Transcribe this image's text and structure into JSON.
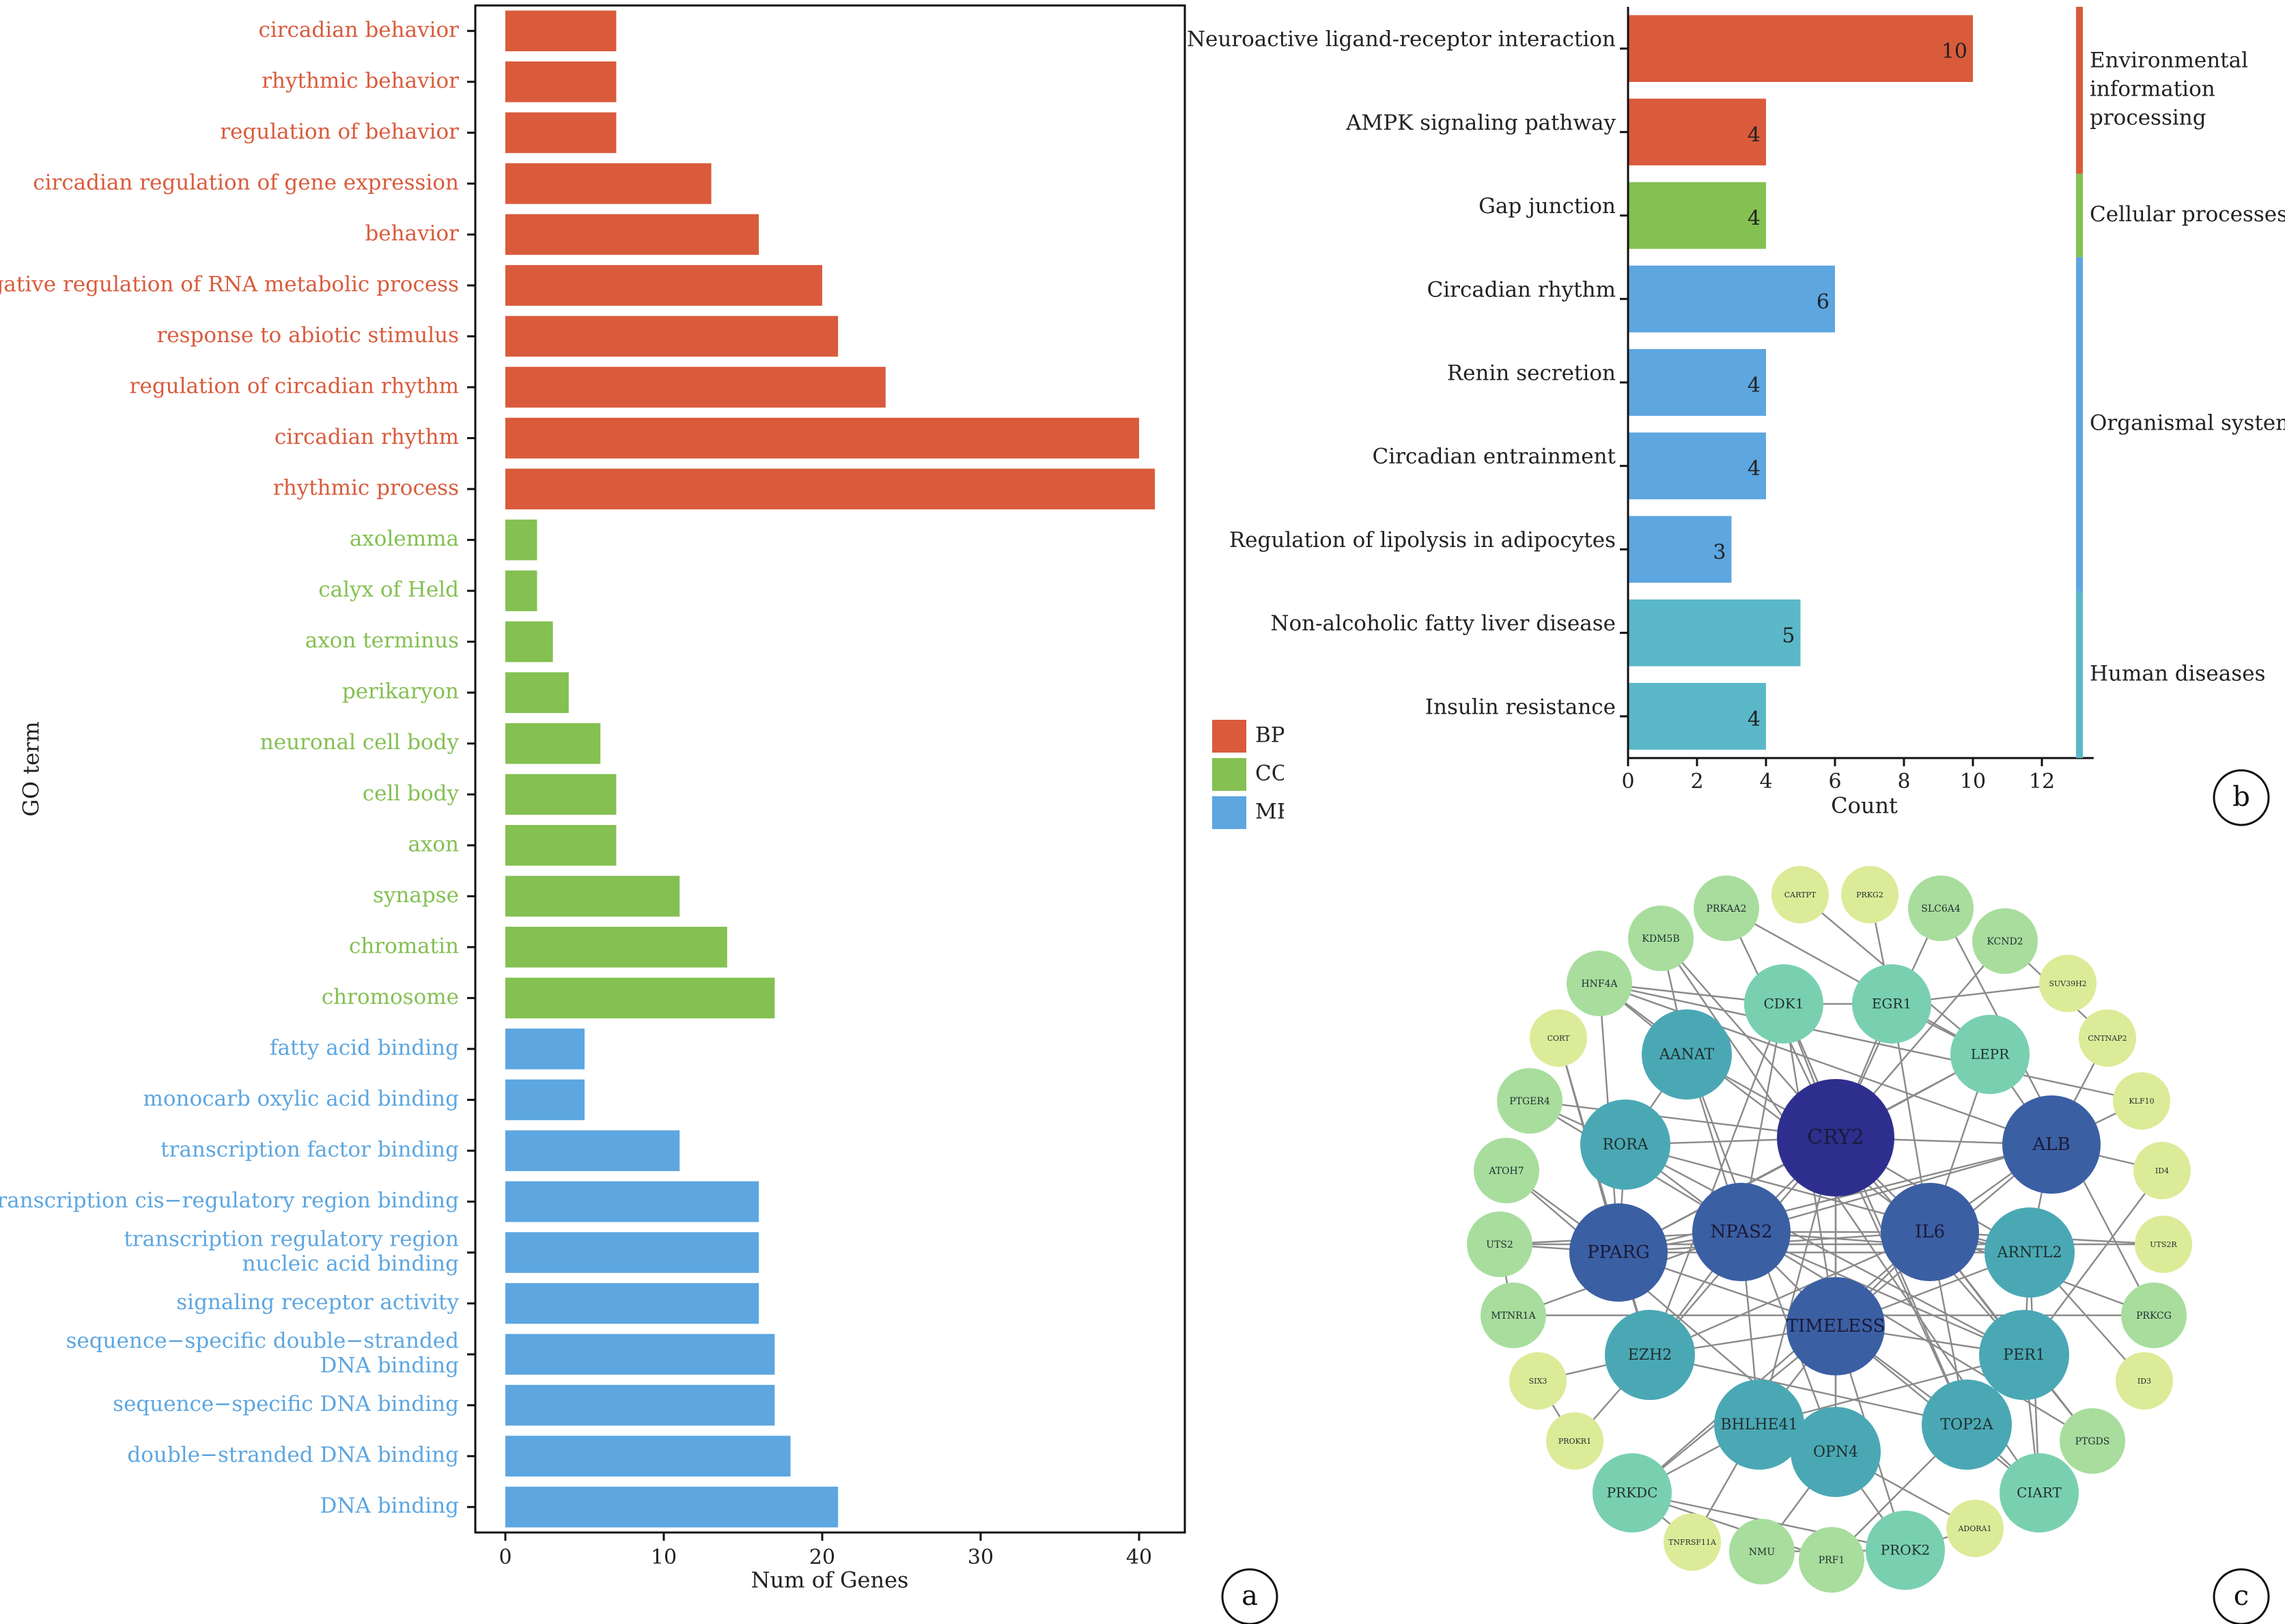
{
  "panels": {
    "a": {
      "label": "a",
      "chart_data": {
        "type": "bar",
        "orientation": "horizontal",
        "xlabel": "Num of Genes",
        "ylabel": "GO term",
        "xlim": [
          0,
          43
        ],
        "xticks": [
          0,
          10,
          20,
          30,
          40
        ],
        "grid": false,
        "legend_placement": "right",
        "legend": [
          {
            "name": "BP",
            "color": "#D95B3C"
          },
          {
            "name": "CC",
            "color": "#84C052"
          },
          {
            "name": "MF",
            "color": "#5DA6E0"
          }
        ],
        "categories": [
          {
            "label": "circadian behavior",
            "value": 7,
            "group": "BP"
          },
          {
            "label": "rhythmic behavior",
            "value": 7,
            "group": "BP"
          },
          {
            "label": "regulation of behavior",
            "value": 7,
            "group": "BP"
          },
          {
            "label": "circadian regulation of gene expression",
            "value": 13,
            "group": "BP"
          },
          {
            "label": "behavior",
            "value": 16,
            "group": "BP"
          },
          {
            "label": "negative regulation of RNA metabolic process",
            "value": 20,
            "group": "BP"
          },
          {
            "label": "response to abiotic stimulus",
            "value": 21,
            "group": "BP"
          },
          {
            "label": "regulation of circadian rhythm",
            "value": 24,
            "group": "BP"
          },
          {
            "label": "circadian rhythm",
            "value": 40,
            "group": "BP"
          },
          {
            "label": "rhythmic process",
            "value": 41,
            "group": "BP"
          },
          {
            "label": "axolemma",
            "value": 2,
            "group": "CC"
          },
          {
            "label": "calyx of Held",
            "value": 2,
            "group": "CC"
          },
          {
            "label": "axon terminus",
            "value": 3,
            "group": "CC"
          },
          {
            "label": "perikaryon",
            "value": 4,
            "group": "CC"
          },
          {
            "label": "neuronal cell body",
            "value": 6,
            "group": "CC"
          },
          {
            "label": "cell body",
            "value": 7,
            "group": "CC"
          },
          {
            "label": "axon",
            "value": 7,
            "group": "CC"
          },
          {
            "label": "synapse",
            "value": 11,
            "group": "CC"
          },
          {
            "label": "chromatin",
            "value": 14,
            "group": "CC"
          },
          {
            "label": "chromosome",
            "value": 17,
            "group": "CC"
          },
          {
            "label": "fatty acid binding",
            "value": 5,
            "group": "MF"
          },
          {
            "label": "monocarb oxylic acid binding",
            "value": 5,
            "group": "MF"
          },
          {
            "label": "transcription factor binding",
            "value": 11,
            "group": "MF"
          },
          {
            "label": "transcription cis−regulatory region binding",
            "value": 16,
            "group": "MF"
          },
          {
            "label": "transcription regulatory region\nnucleic acid binding",
            "value": 16,
            "group": "MF"
          },
          {
            "label": "signaling receptor activity",
            "value": 16,
            "group": "MF"
          },
          {
            "label": "sequence−specific double−stranded\nDNA binding",
            "value": 17,
            "group": "MF"
          },
          {
            "label": "sequence−specific DNA binding",
            "value": 17,
            "group": "MF"
          },
          {
            "label": "double−stranded DNA binding",
            "value": 18,
            "group": "MF"
          },
          {
            "label": "DNA binding",
            "value": 21,
            "group": "MF"
          }
        ]
      }
    },
    "b": {
      "label": "b",
      "chart_data": {
        "type": "bar",
        "orientation": "horizontal",
        "xlabel": "Count",
        "xlim": [
          0,
          13.5
        ],
        "xticks": [
          0,
          2,
          4,
          6,
          8,
          10,
          12
        ],
        "grid": false,
        "categories": [
          {
            "label": "Neuroactive ligand-receptor interaction",
            "value": 10,
            "group": "Environmental information processing"
          },
          {
            "label": "AMPK signaling pathway",
            "value": 4,
            "group": "Environmental information processing"
          },
          {
            "label": "Gap junction",
            "value": 4,
            "group": "Cellular processes"
          },
          {
            "label": "Circadian rhythm",
            "value": 6,
            "group": "Organismal systems"
          },
          {
            "label": "Renin secretion",
            "value": 4,
            "group": "Organismal systems"
          },
          {
            "label": "Circadian entrainment",
            "value": 4,
            "group": "Organismal systems"
          },
          {
            "label": "Regulation of lipolysis in adipocytes",
            "value": 3,
            "group": "Organismal systems"
          },
          {
            "label": "Non-alcoholic fatty liver disease",
            "value": 5,
            "group": "Human diseases"
          },
          {
            "label": "Insulin resistance",
            "value": 4,
            "group": "Human diseases"
          }
        ],
        "groups": [
          {
            "name": "Environmental\ninformation\nprocessing",
            "key": "Environmental information processing",
            "color": "#D95B3C"
          },
          {
            "name": "Cellular processes",
            "key": "Cellular processes",
            "color": "#84C052"
          },
          {
            "name": "Organismal systems",
            "key": "Organismal systems",
            "color": "#5DA6E0"
          },
          {
            "name": "Human diseases",
            "key": "Human diseases",
            "color": "#5AB8C8"
          }
        ]
      }
    },
    "c": {
      "label": "c",
      "network": {
        "type": "network",
        "nodes": [
          {
            "id": "CRY2",
            "tier": 1
          },
          {
            "id": "IL6",
            "tier": 2
          },
          {
            "id": "NPAS2",
            "tier": 2
          },
          {
            "id": "TIMELESS",
            "tier": 2
          },
          {
            "id": "ALB",
            "tier": 2
          },
          {
            "id": "PPARG",
            "tier": 2
          },
          {
            "id": "ARNTL2",
            "tier": 3
          },
          {
            "id": "EZH2",
            "tier": 3
          },
          {
            "id": "RORA",
            "tier": 3
          },
          {
            "id": "AANAT",
            "tier": 3
          },
          {
            "id": "TOP2A",
            "tier": 3
          },
          {
            "id": "BHLHE41",
            "tier": 3
          },
          {
            "id": "PER1",
            "tier": 3
          },
          {
            "id": "OPN4",
            "tier": 3
          },
          {
            "id": "CDK1",
            "tier": 4
          },
          {
            "id": "EGR1",
            "tier": 4
          },
          {
            "id": "LEPR",
            "tier": 4
          },
          {
            "id": "CIART",
            "tier": 4
          },
          {
            "id": "PROK2",
            "tier": 4
          },
          {
            "id": "PRKDC",
            "tier": 4
          },
          {
            "id": "HNF4A",
            "tier": 5
          },
          {
            "id": "UTS2",
            "tier": 5
          },
          {
            "id": "MTNR1A",
            "tier": 5
          },
          {
            "id": "PTGDS",
            "tier": 5
          },
          {
            "id": "KDM5B",
            "tier": 5
          },
          {
            "id": "PRKAA2",
            "tier": 5
          },
          {
            "id": "SLC6A4",
            "tier": 5
          },
          {
            "id": "KCND2",
            "tier": 5
          },
          {
            "id": "ATOH7",
            "tier": 5
          },
          {
            "id": "PTGER4",
            "tier": 5
          },
          {
            "id": "PRKCG",
            "tier": 5
          },
          {
            "id": "NMU",
            "tier": 5
          },
          {
            "id": "PRF1",
            "tier": 5
          },
          {
            "id": "CARTPT",
            "tier": 6
          },
          {
            "id": "PRKG2",
            "tier": 6
          },
          {
            "id": "SUV39H2",
            "tier": 6
          },
          {
            "id": "CNTNAP2",
            "tier": 6
          },
          {
            "id": "KLF10",
            "tier": 6
          },
          {
            "id": "ID4",
            "tier": 6
          },
          {
            "id": "UTS2R",
            "tier": 6
          },
          {
            "id": "ID3",
            "tier": 6
          },
          {
            "id": "CORT",
            "tier": 6
          },
          {
            "id": "SIX3",
            "tier": 6
          },
          {
            "id": "PROKR1",
            "tier": 6
          },
          {
            "id": "TNFRSF11A",
            "tier": 6
          },
          {
            "id": "ADORA1",
            "tier": 6
          }
        ],
        "tier_colors": {
          "1": "#2E2E8E",
          "2": "#3B5FA3",
          "3": "#4AA8B4",
          "4": "#79D0B0",
          "5": "#A8DD9E",
          "6": "#DCEB98"
        }
      }
    }
  }
}
